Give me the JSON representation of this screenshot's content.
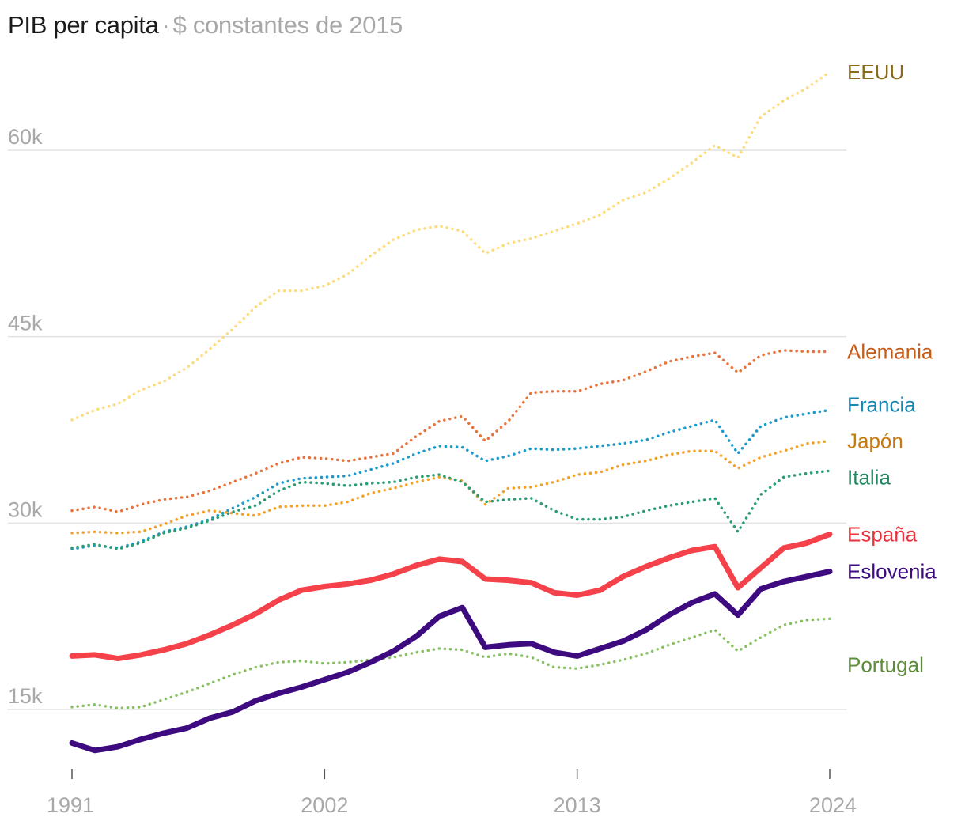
{
  "chart_data": {
    "type": "line",
    "title": "PIB per capita",
    "separator": "·",
    "subtitle": "$ constantes de 2015",
    "xlabel": "",
    "ylabel": "",
    "x": [
      1991,
      1992,
      1993,
      1994,
      1995,
      1996,
      1997,
      1998,
      1999,
      2000,
      2001,
      2002,
      2003,
      2004,
      2005,
      2006,
      2007,
      2008,
      2009,
      2010,
      2011,
      2012,
      2013,
      2014,
      2015,
      2016,
      2017,
      2018,
      2019,
      2020,
      2021,
      2022,
      2023,
      2024
    ],
    "xticks": [
      1991,
      2002,
      2013,
      2024
    ],
    "xtick_labels": [
      "1991",
      "2002",
      "2013",
      "2024"
    ],
    "xlim": [
      1991,
      2024
    ],
    "ylim": [
      10500,
      66000
    ],
    "yticks": [
      15000,
      30000,
      45000,
      60000
    ],
    "ytick_labels": [
      "15k",
      "30k",
      "45k",
      "60k"
    ],
    "grid": true,
    "series": [
      {
        "name": "EEUU",
        "color": "#fddc7d",
        "label_color": "#8a6b1a",
        "style": "dotted",
        "values": [
          38300,
          39100,
          39600,
          40700,
          41400,
          42500,
          44000,
          45600,
          47400,
          48700,
          48700,
          49100,
          50000,
          51500,
          52800,
          53600,
          53900,
          53500,
          51700,
          52500,
          52900,
          53500,
          54100,
          54800,
          56000,
          56600,
          57700,
          59000,
          60400,
          59400,
          62700,
          64000,
          65000,
          66300
        ]
      },
      {
        "name": "Alemania",
        "color": "#e8743b",
        "label_color": "#c85a17",
        "style": "dotted",
        "values": [
          31000,
          31300,
          30900,
          31500,
          31900,
          32100,
          32600,
          33300,
          34000,
          34800,
          35300,
          35200,
          35000,
          35300,
          35600,
          37000,
          38200,
          38600,
          36600,
          38200,
          40500,
          40600,
          40600,
          41200,
          41500,
          42200,
          43000,
          43400,
          43700,
          42100,
          43500,
          43900,
          43800,
          43800
        ]
      },
      {
        "name": "Francia",
        "color": "#1b9bc9",
        "label_color": "#1486b3",
        "style": "dotted",
        "values": [
          27900,
          28200,
          28000,
          28500,
          29300,
          29700,
          30300,
          31200,
          32100,
          33200,
          33600,
          33700,
          33800,
          34300,
          34800,
          35600,
          36200,
          36100,
          35000,
          35400,
          36000,
          35900,
          36000,
          36200,
          36400,
          36700,
          37300,
          37800,
          38300,
          35600,
          37800,
          38500,
          38800,
          39100
        ]
      },
      {
        "name": "Japón",
        "color": "#f4a12a",
        "label_color": "#c77a12",
        "style": "dotted",
        "values": [
          29200,
          29300,
          29200,
          29300,
          29900,
          30600,
          31000,
          30800,
          30600,
          31300,
          31400,
          31400,
          31700,
          32400,
          32800,
          33300,
          33700,
          33400,
          31500,
          32800,
          32900,
          33300,
          33900,
          34100,
          34700,
          35000,
          35500,
          35800,
          35800,
          34400,
          35300,
          35800,
          36400,
          36600
        ]
      },
      {
        "name": "Italia",
        "color": "#2a9d72",
        "label_color": "#1e8a60",
        "style": "dotted",
        "values": [
          28000,
          28300,
          27900,
          28400,
          29200,
          29600,
          30200,
          30900,
          31400,
          32600,
          33300,
          33200,
          33000,
          33200,
          33300,
          33700,
          33900,
          33300,
          31700,
          31900,
          32000,
          31000,
          30300,
          30300,
          30500,
          31000,
          31400,
          31700,
          32000,
          29300,
          32300,
          33700,
          34000,
          34200
        ]
      },
      {
        "name": "España",
        "color": "#f5414a",
        "label_color": "#e8323c",
        "style": "solid",
        "values": [
          19300,
          19400,
          19100,
          19400,
          19800,
          20300,
          21000,
          21800,
          22700,
          23800,
          24600,
          24900,
          25100,
          25400,
          25900,
          26600,
          27100,
          26900,
          25500,
          25400,
          25200,
          24400,
          24200,
          24600,
          25700,
          26500,
          27200,
          27800,
          28100,
          24800,
          26400,
          28000,
          28400,
          29100
        ]
      },
      {
        "name": "Eslovenia",
        "color": "#3d0a7f",
        "label_color": "#3d0a7f",
        "style": "solid",
        "values": [
          12300,
          11700,
          12000,
          12600,
          13100,
          13500,
          14300,
          14800,
          15700,
          16300,
          16800,
          17400,
          18000,
          18800,
          19700,
          20900,
          22500,
          23200,
          20000,
          20200,
          20300,
          19600,
          19300,
          19900,
          20500,
          21400,
          22600,
          23600,
          24300,
          22600,
          24700,
          25300,
          25700,
          26100
        ]
      },
      {
        "name": "Portugal",
        "color": "#8ac065",
        "label_color": "#5f8c3b",
        "style": "dotted",
        "values": [
          15200,
          15400,
          15100,
          15200,
          15800,
          16400,
          17100,
          17800,
          18400,
          18800,
          18900,
          18700,
          18800,
          19000,
          19200,
          19600,
          19900,
          19800,
          19200,
          19500,
          19200,
          18400,
          18300,
          18600,
          19000,
          19500,
          20200,
          20800,
          21400,
          19700,
          20800,
          21800,
          22200,
          22300
        ]
      }
    ]
  }
}
